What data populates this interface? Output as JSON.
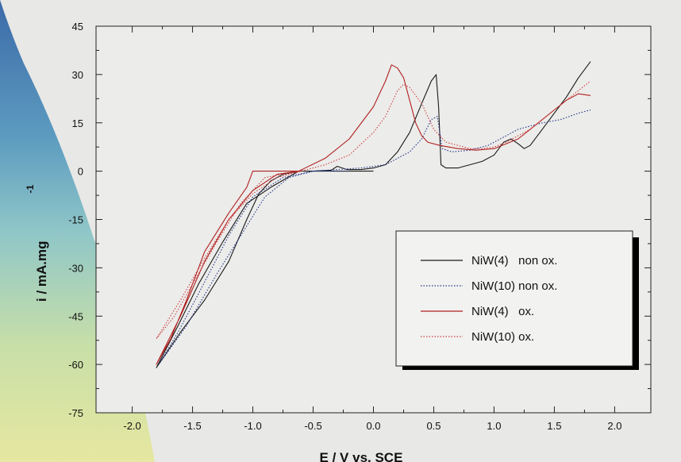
{
  "chart_data": {
    "type": "line",
    "xlabel": "E / V vs. SCE",
    "ylabel": "i /  mA.mg",
    "ylabel_superscript": "-1",
    "xlim": [
      -2.3,
      2.3
    ],
    "ylim": [
      -75,
      45
    ],
    "x_ticks": [
      -2.0,
      -1.5,
      -1.0,
      -0.5,
      0.0,
      0.5,
      1.0,
      1.5,
      2.0
    ],
    "x_tick_labels": [
      "-2.0",
      "-1.5",
      "-1.0",
      "-0.5",
      "0.0",
      "0.5",
      "1.0",
      "1.5",
      "2.0"
    ],
    "y_ticks": [
      -75,
      -60,
      -45,
      -30,
      -15,
      0,
      15,
      30,
      45
    ],
    "y_tick_labels": [
      "-75",
      "-60",
      "-45",
      "-30",
      "-15",
      "0",
      "15",
      "30",
      "45"
    ],
    "legend_position": "lower-right",
    "series": [
      {
        "name": "NiW(4)   non ox.",
        "color": "#1a1a1a",
        "dash": "solid",
        "points": [
          [
            0.0,
            0
          ],
          [
            -0.3,
            0
          ],
          [
            -0.62,
            0
          ],
          [
            -0.85,
            -5
          ],
          [
            -1.05,
            -10
          ],
          [
            -1.25,
            -22
          ],
          [
            -1.45,
            -35
          ],
          [
            -1.62,
            -48
          ],
          [
            -1.8,
            -61
          ],
          [
            -1.6,
            -50
          ],
          [
            -1.4,
            -40
          ],
          [
            -1.2,
            -28
          ],
          [
            -1.05,
            -15
          ],
          [
            -0.95,
            -7
          ],
          [
            -0.85,
            -3
          ],
          [
            -0.75,
            -1
          ],
          [
            -0.62,
            0
          ],
          [
            -0.5,
            0
          ],
          [
            -0.35,
            0.3
          ],
          [
            -0.3,
            1.5
          ],
          [
            -0.22,
            0.5
          ],
          [
            -0.1,
            0.5
          ],
          [
            0.0,
            1
          ],
          [
            0.1,
            2
          ],
          [
            0.2,
            6
          ],
          [
            0.3,
            12
          ],
          [
            0.4,
            21
          ],
          [
            0.48,
            28
          ],
          [
            0.52,
            30
          ],
          [
            0.54,
            20
          ],
          [
            0.56,
            2
          ],
          [
            0.6,
            1
          ],
          [
            0.7,
            1
          ],
          [
            0.8,
            2
          ],
          [
            0.9,
            3
          ],
          [
            1.0,
            5
          ],
          [
            1.08,
            9
          ],
          [
            1.14,
            10
          ],
          [
            1.2,
            8.5
          ],
          [
            1.25,
            7
          ],
          [
            1.3,
            8
          ],
          [
            1.4,
            13
          ],
          [
            1.5,
            18
          ],
          [
            1.6,
            23
          ],
          [
            1.7,
            29
          ],
          [
            1.8,
            34
          ]
        ]
      },
      {
        "name": "NiW(10) non ox.",
        "color": "#223388",
        "dash": "dotted",
        "points": [
          [
            -0.2,
            0
          ],
          [
            -0.5,
            0
          ],
          [
            -0.75,
            -2
          ],
          [
            -1.0,
            -8
          ],
          [
            -1.2,
            -20
          ],
          [
            -1.45,
            -38
          ],
          [
            -1.62,
            -50
          ],
          [
            -1.78,
            -60
          ],
          [
            -1.55,
            -48
          ],
          [
            -1.3,
            -32
          ],
          [
            -1.1,
            -20
          ],
          [
            -0.9,
            -8
          ],
          [
            -0.7,
            -2
          ],
          [
            -0.5,
            0
          ],
          [
            -0.3,
            0.5
          ],
          [
            -0.1,
            1
          ],
          [
            0.1,
            2
          ],
          [
            0.2,
            4
          ],
          [
            0.3,
            6
          ],
          [
            0.4,
            10
          ],
          [
            0.48,
            16
          ],
          [
            0.53,
            17
          ],
          [
            0.55,
            12
          ],
          [
            0.57,
            7
          ],
          [
            0.65,
            6
          ],
          [
            0.8,
            6.5
          ],
          [
            0.95,
            8
          ],
          [
            1.1,
            11
          ],
          [
            1.2,
            13
          ],
          [
            1.3,
            14
          ],
          [
            1.4,
            15
          ],
          [
            1.55,
            16
          ],
          [
            1.7,
            18
          ],
          [
            1.8,
            19
          ]
        ]
      },
      {
        "name": "NiW(4)   ox.",
        "color": "#b02020",
        "dash": "solid",
        "points": [
          [
            -0.62,
            0
          ],
          [
            -0.8,
            0
          ],
          [
            -1.0,
            0
          ],
          [
            -1.05,
            -5
          ],
          [
            -1.2,
            -13
          ],
          [
            -1.4,
            -25
          ],
          [
            -1.55,
            -40
          ],
          [
            -1.68,
            -52
          ],
          [
            -1.8,
            -60
          ],
          [
            -1.6,
            -45
          ],
          [
            -1.4,
            -28
          ],
          [
            -1.2,
            -15
          ],
          [
            -1.0,
            -6
          ],
          [
            -0.8,
            -1
          ],
          [
            -0.62,
            0
          ],
          [
            -0.4,
            4
          ],
          [
            -0.2,
            10
          ],
          [
            0.0,
            20
          ],
          [
            0.1,
            28
          ],
          [
            0.15,
            33
          ],
          [
            0.2,
            32
          ],
          [
            0.25,
            29
          ],
          [
            0.3,
            22
          ],
          [
            0.35,
            15
          ],
          [
            0.4,
            11
          ],
          [
            0.45,
            9
          ],
          [
            0.55,
            8
          ],
          [
            0.7,
            7
          ],
          [
            0.85,
            6.5
          ],
          [
            1.0,
            7
          ],
          [
            1.1,
            8.5
          ],
          [
            1.2,
            10
          ],
          [
            1.3,
            13
          ],
          [
            1.4,
            16
          ],
          [
            1.5,
            19
          ],
          [
            1.6,
            22
          ],
          [
            1.7,
            24
          ],
          [
            1.8,
            23.5
          ]
        ]
      },
      {
        "name": "NiW(10) ox.",
        "color": "#cc4040",
        "dash": "dotted",
        "points": [
          [
            -0.6,
            0
          ],
          [
            -0.9,
            -2
          ],
          [
            -1.1,
            -10
          ],
          [
            -1.3,
            -22
          ],
          [
            -1.5,
            -35
          ],
          [
            -1.65,
            -45
          ],
          [
            -1.8,
            -52
          ],
          [
            -1.6,
            -40
          ],
          [
            -1.4,
            -27
          ],
          [
            -1.2,
            -15
          ],
          [
            -1.0,
            -7
          ],
          [
            -0.8,
            -2
          ],
          [
            -0.6,
            0
          ],
          [
            -0.4,
            2
          ],
          [
            -0.2,
            5
          ],
          [
            0.0,
            12
          ],
          [
            0.1,
            17
          ],
          [
            0.2,
            25
          ],
          [
            0.25,
            27
          ],
          [
            0.3,
            26
          ],
          [
            0.4,
            21
          ],
          [
            0.5,
            13
          ],
          [
            0.6,
            9
          ],
          [
            0.7,
            8
          ],
          [
            0.8,
            7
          ],
          [
            0.9,
            7
          ],
          [
            1.0,
            7.5
          ],
          [
            1.1,
            9
          ],
          [
            1.2,
            11
          ],
          [
            1.3,
            13
          ],
          [
            1.4,
            16
          ],
          [
            1.5,
            19
          ],
          [
            1.6,
            22
          ],
          [
            1.7,
            25
          ],
          [
            1.8,
            28
          ]
        ]
      }
    ]
  }
}
